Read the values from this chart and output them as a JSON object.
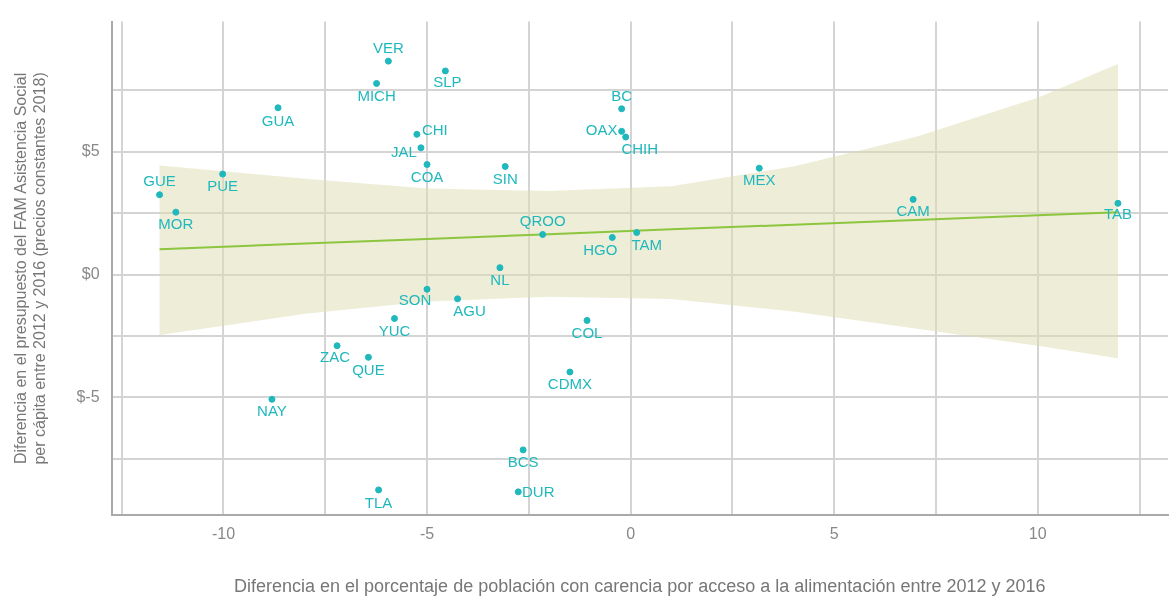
{
  "chart_data": {
    "type": "scatter",
    "xlabel": "Diferencia en el porcentaje de población con carencia por acceso a la alimentación entre 2012 y 2016",
    "ylabel": "Diferencia en el presupuesto del FAM Asistencia Social\nper cápita entre 2012 y 2016 (precios constantes 2018)",
    "xlim": [
      -12.75,
      13.2
    ],
    "ylim": [
      -9.8,
      10.3
    ],
    "xticks": [
      {
        "value": -12.5,
        "label": null
      },
      -10,
      {
        "value": -7.5,
        "label": null
      },
      -5,
      {
        "value": -2.5,
        "label": null
      },
      0,
      {
        "value": 2.5,
        "label": null
      },
      5,
      {
        "value": 7.5,
        "label": null
      },
      10,
      {
        "value": 12.5,
        "label": null
      }
    ],
    "yticks": [
      {
        "value": -7.5,
        "label": null
      },
      {
        "value": -5,
        "label": "$-5"
      },
      {
        "value": -2.5,
        "label": null
      },
      {
        "value": 0,
        "label": "$0"
      },
      {
        "value": 2.5,
        "label": null
      },
      {
        "value": 5,
        "label": "$5"
      },
      {
        "value": 7.5,
        "label": null
      }
    ],
    "grid": true,
    "legend": false,
    "series": [
      {
        "marker": "circle",
        "color": "#1fb8bc",
        "x": [
          -5.95,
          -4.55,
          -6.24,
          -8.66,
          -0.22,
          -0.22,
          -0.12,
          -5.25,
          -5.15,
          -5.0,
          -3.08,
          3.16,
          -10.02,
          -11.57,
          6.94,
          11.97,
          -11.17,
          -2.16,
          0.15,
          -0.45,
          -3.21,
          -5.0,
          -4.25,
          -1.07,
          -5.8,
          -7.21,
          -6.44,
          -1.49,
          -8.81,
          -2.64,
          -2.76,
          -6.19
        ],
        "values": [
          8.69,
          8.29,
          7.78,
          6.79,
          6.75,
          5.83,
          5.6,
          5.71,
          5.16,
          4.48,
          4.4,
          4.33,
          4.09,
          3.25,
          3.06,
          2.9,
          2.54,
          1.63,
          1.71,
          1.51,
          0.28,
          -0.6,
          -0.99,
          -1.87,
          -1.79,
          -2.9,
          -3.37,
          -3.97,
          -5.08,
          -7.14,
          -8.85,
          -8.77
        ]
      },
      {
        "type": "line",
        "marker": "none",
        "line_style": "solid",
        "color": "#8cc63e",
        "x": [
          -11.57,
          -8,
          -5,
          -2,
          1,
          4,
          7,
          10,
          11.97
        ],
        "values": [
          1.03,
          1.26,
          1.45,
          1.64,
          1.84,
          2.03,
          2.22,
          2.41,
          2.54
        ],
        "lower": [
          -2.46,
          -1.6,
          -1.1,
          -0.9,
          -1.0,
          -1.5,
          -2.2,
          -2.9,
          -3.41
        ],
        "upper": [
          4.44,
          3.9,
          3.5,
          3.4,
          3.6,
          4.4,
          5.6,
          7.2,
          8.57
        ]
      }
    ],
    "annotations": [
      {
        "text": "VER",
        "x": -5.95,
        "y": 8.69
      },
      {
        "text": "SLP",
        "x": -4.55,
        "y": 8.29
      },
      {
        "text": "MICH",
        "x": -6.24,
        "y": 7.78
      },
      {
        "text": "GUA",
        "x": -8.66,
        "y": 6.79
      },
      {
        "text": "BC",
        "x": -0.22,
        "y": 6.75
      },
      {
        "text": "OAX",
        "x": -0.22,
        "y": 5.83
      },
      {
        "text": "CHIH",
        "x": -0.12,
        "y": 5.6
      },
      {
        "text": "CHI",
        "x": -5.25,
        "y": 5.71
      },
      {
        "text": "JAL",
        "x": -5.15,
        "y": 5.16
      },
      {
        "text": "COA",
        "x": -5.0,
        "y": 4.48
      },
      {
        "text": "SIN",
        "x": -3.08,
        "y": 4.4
      },
      {
        "text": "MEX",
        "x": 3.16,
        "y": 4.33
      },
      {
        "text": "PUE",
        "x": -10.02,
        "y": 4.09
      },
      {
        "text": "GUE",
        "x": -11.57,
        "y": 3.25
      },
      {
        "text": "CAM",
        "x": 6.94,
        "y": 3.06
      },
      {
        "text": "TAB",
        "x": 11.97,
        "y": 2.9
      },
      {
        "text": "MOR",
        "x": -11.17,
        "y": 2.54
      },
      {
        "text": "QROO",
        "x": -2.16,
        "y": 1.63
      },
      {
        "text": "TAM",
        "x": 0.15,
        "y": 1.71
      },
      {
        "text": "HGO",
        "x": -0.45,
        "y": 1.51
      },
      {
        "text": "NL",
        "x": -3.21,
        "y": 0.28
      },
      {
        "text": "SON",
        "x": -5.0,
        "y": -0.6
      },
      {
        "text": "AGU",
        "x": -4.25,
        "y": -0.99
      },
      {
        "text": "COL",
        "x": -1.07,
        "y": -1.87
      },
      {
        "text": "YUC",
        "x": -5.8,
        "y": -1.79
      },
      {
        "text": "ZAC",
        "x": -7.21,
        "y": -2.9
      },
      {
        "text": "QUE",
        "x": -6.44,
        "y": -3.37
      },
      {
        "text": "CDMX",
        "x": -1.49,
        "y": -3.97
      },
      {
        "text": "NAY",
        "x": -8.81,
        "y": -5.08
      },
      {
        "text": "BCS",
        "x": -2.64,
        "y": -7.14
      },
      {
        "text": "DUR",
        "x": -2.76,
        "y": -8.85
      },
      {
        "text": "TLA",
        "x": -6.19,
        "y": -8.77
      }
    ]
  }
}
